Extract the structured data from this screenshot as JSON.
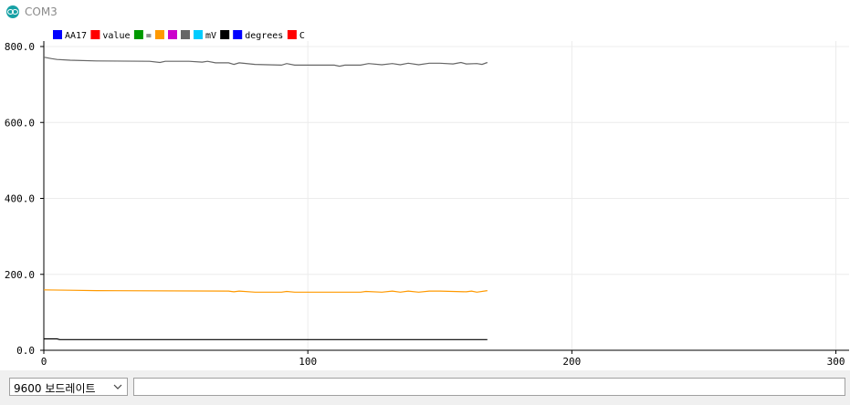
{
  "window": {
    "title": "COM3",
    "icon": "arduino-icon"
  },
  "chart_data": {
    "type": "line",
    "xlim": [
      0,
      305
    ],
    "ylim": [
      0,
      800
    ],
    "x_ticks": [
      0,
      100,
      200,
      300
    ],
    "x_tick_labels": [
      "0",
      "100",
      "200",
      "300"
    ],
    "y_ticks": [
      0,
      200,
      400,
      600,
      800
    ],
    "y_tick_labels": [
      "0.0",
      "200.0",
      "400.0",
      "600.0",
      "800.0"
    ],
    "grid": true,
    "legend_position": "top-left",
    "legend": [
      {
        "label": "AA17",
        "color": "#0000ff"
      },
      {
        "label": "value",
        "color": "#ff0000"
      },
      {
        "label": "=",
        "color": "#009900"
      },
      {
        "label": "",
        "color": "#ff9900"
      },
      {
        "label": "",
        "color": "#cc00cc"
      },
      {
        "label": "",
        "color": "#666666"
      },
      {
        "label": "mV",
        "color": "#00ccff"
      },
      {
        "label": "",
        "color": "#000000"
      },
      {
        "label": "degrees",
        "color": "#0000ff"
      },
      {
        "label": "C",
        "color": "#ff0000"
      }
    ],
    "series": [
      {
        "color": "#666666",
        "points": [
          [
            0,
            772
          ],
          [
            3,
            768
          ],
          [
            5,
            766
          ],
          [
            10,
            764
          ],
          [
            20,
            762
          ],
          [
            40,
            761
          ],
          [
            44,
            758
          ],
          [
            46,
            761
          ],
          [
            55,
            761
          ],
          [
            60,
            759
          ],
          [
            62,
            761
          ],
          [
            65,
            757
          ],
          [
            70,
            757
          ],
          [
            72,
            753
          ],
          [
            74,
            757
          ],
          [
            80,
            753
          ],
          [
            90,
            751
          ],
          [
            92,
            755
          ],
          [
            95,
            751
          ],
          [
            110,
            751
          ],
          [
            112,
            748
          ],
          [
            114,
            751
          ],
          [
            120,
            751
          ],
          [
            123,
            755
          ],
          [
            128,
            752
          ],
          [
            132,
            755
          ],
          [
            135,
            752
          ],
          [
            138,
            756
          ],
          [
            142,
            752
          ],
          [
            146,
            756
          ],
          [
            150,
            756
          ],
          [
            155,
            754
          ],
          [
            158,
            758
          ],
          [
            160,
            754
          ],
          [
            164,
            755
          ],
          [
            166,
            753
          ],
          [
            168,
            758
          ]
        ]
      },
      {
        "color": "#ff9900",
        "points": [
          [
            0,
            159
          ],
          [
            10,
            158
          ],
          [
            20,
            157
          ],
          [
            70,
            156
          ],
          [
            72,
            154
          ],
          [
            74,
            156
          ],
          [
            80,
            153
          ],
          [
            90,
            153
          ],
          [
            92,
            155
          ],
          [
            95,
            153
          ],
          [
            120,
            153
          ],
          [
            122,
            155
          ],
          [
            128,
            153
          ],
          [
            132,
            156
          ],
          [
            135,
            153
          ],
          [
            138,
            156
          ],
          [
            142,
            153
          ],
          [
            146,
            156
          ],
          [
            150,
            156
          ],
          [
            160,
            154
          ],
          [
            162,
            156
          ],
          [
            164,
            153
          ],
          [
            168,
            157
          ]
        ]
      },
      {
        "color": "#000000",
        "points": [
          [
            0,
            30
          ],
          [
            5,
            30
          ],
          [
            6,
            28
          ],
          [
            10,
            28
          ],
          [
            168,
            28
          ]
        ]
      }
    ]
  },
  "serial": {
    "baud_rate": "9600 보드레이트",
    "input_value": ""
  }
}
